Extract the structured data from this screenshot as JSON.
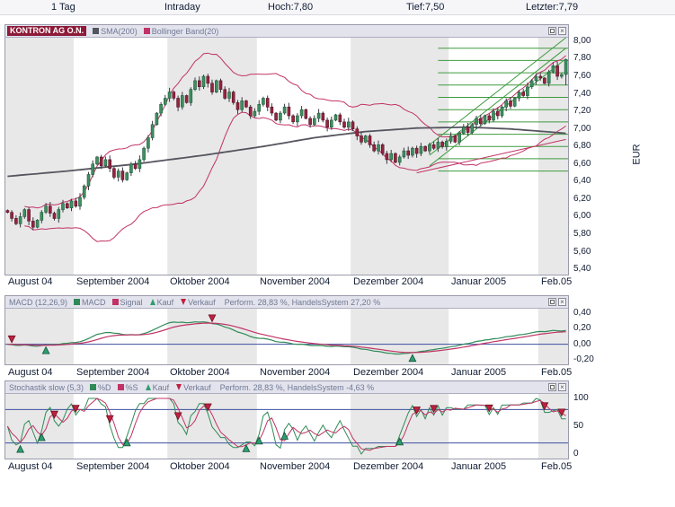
{
  "top_bar": {
    "period": "1 Tag",
    "mode": "Intraday",
    "high": "Hoch:7,80",
    "low": "Tief:7,50",
    "last": "Letzter:7,79"
  },
  "panels": {
    "price": {
      "symbol": "KONTRON AG O.N.",
      "sma": "SMA(200)",
      "bollinger": "Bollinger Band(20)",
      "unit": "EUR"
    },
    "macd": {
      "title": "MACD (12,26,9)",
      "line1_label": "MACD",
      "line2_label": "Signal",
      "buy_label": "Kauf",
      "sell_label": "Verkauf",
      "performance": "Perform. 28,83 %, HandelsSystem 27,20 %"
    },
    "stochastic": {
      "title": "Stochastik slow (5,3)",
      "line1_label": "%D",
      "line2_label": "%S",
      "buy_label": "Kauf",
      "sell_label": "Verkauf",
      "performance": "Perform. 28,83 %, HandelsSystem -4,63 %"
    }
  },
  "colors": {
    "chip_bg": "#8c1a38",
    "up": "#3f8f5f",
    "up_stroke": "#1d5c3c",
    "down": "#962441",
    "down_stroke": "#551226",
    "wick": "#3a3a44",
    "bollinger": "#c13366",
    "sma": "#55555f",
    "macd_line": "#2e8b57",
    "signal_line": "#c13366",
    "buy": "#2e9e6e",
    "buy_stroke": "#14513a",
    "sell": "#c02040",
    "sell_stroke": "#6e1020",
    "annotation_green": "#3f9b3f",
    "threshold_blue": "#3c4fa0",
    "stripe": "#e8e8e8"
  },
  "chart_data": [
    {
      "id": "price",
      "type": "candlestick",
      "title": "KONTRON AG O.N.",
      "x_labels": [
        "August 04",
        "September 2004",
        "Oktober 2004",
        "November 2004",
        "Dezember 2004",
        "Januar 2005",
        "Feb.05"
      ],
      "days_per_month": [
        16,
        22,
        21,
        22,
        23,
        21,
        7
      ],
      "y_ticks": [
        "8,00",
        "7,80",
        "7,60",
        "7,40",
        "7,20",
        "7,00",
        "6,80",
        "6,60",
        "6,40",
        "6,20",
        "6,00",
        "5,80",
        "5,60",
        "5,40"
      ],
      "y_range": [
        5.34,
        8.04
      ],
      "unit": "EUR",
      "closes": [
        6.05,
        5.98,
        5.92,
        6.0,
        6.08,
        5.95,
        5.88,
        5.96,
        6.05,
        6.12,
        6.04,
        5.98,
        6.08,
        6.15,
        6.1,
        6.18,
        6.12,
        6.22,
        6.35,
        6.48,
        6.6,
        6.68,
        6.58,
        6.65,
        6.55,
        6.45,
        6.52,
        6.42,
        6.5,
        6.6,
        6.55,
        6.65,
        6.78,
        6.9,
        7.05,
        7.18,
        7.28,
        7.35,
        7.42,
        7.35,
        7.25,
        7.38,
        7.3,
        7.45,
        7.55,
        7.48,
        7.6,
        7.52,
        7.42,
        7.55,
        7.45,
        7.35,
        7.42,
        7.3,
        7.22,
        7.32,
        7.25,
        7.15,
        7.2,
        7.28,
        7.35,
        7.25,
        7.18,
        7.1,
        7.18,
        7.25,
        7.15,
        7.08,
        7.15,
        7.22,
        7.12,
        7.05,
        7.12,
        7.18,
        7.1,
        7.02,
        7.1,
        7.16,
        7.08,
        7.02,
        7.08,
        7.0,
        6.92,
        6.85,
        6.92,
        6.82,
        6.75,
        6.82,
        6.72,
        6.65,
        6.72,
        6.62,
        6.68,
        6.75,
        6.7,
        6.78,
        6.72,
        6.8,
        6.75,
        6.82,
        6.78,
        6.85,
        6.8,
        6.86,
        6.92,
        6.85,
        6.95,
        7.02,
        6.96,
        7.05,
        7.12,
        7.06,
        7.15,
        7.1,
        7.2,
        7.15,
        7.25,
        7.32,
        7.26,
        7.35,
        7.42,
        7.38,
        7.48,
        7.55,
        7.6,
        7.58,
        7.52,
        7.65,
        7.72,
        7.6,
        7.62,
        7.79
      ],
      "last_candle": {
        "open": 7.62,
        "high": 7.8,
        "low": 7.5,
        "close": 7.79
      },
      "overlays": {
        "sma200_points": [
          [
            0,
            6.46
          ],
          [
            14,
            6.52
          ],
          [
            30,
            6.6
          ],
          [
            46,
            6.7
          ],
          [
            60,
            6.8
          ],
          [
            72,
            6.9
          ],
          [
            84,
            6.97
          ],
          [
            96,
            7.01
          ],
          [
            108,
            7.02
          ],
          [
            118,
            7.0
          ],
          [
            126,
            6.97
          ],
          [
            131,
            6.95
          ]
        ],
        "bollinger_period": 20,
        "resistance_levels": {
          "start_index": 101,
          "values": [
            7.92,
            7.78,
            7.64,
            7.5,
            7.36,
            7.22,
            7.08,
            6.94,
            6.8,
            6.66,
            6.52
          ]
        },
        "trend_channel": {
          "start_index": 99,
          "end_index": 131,
          "lines": [
            [
              6.58,
              7.8
            ],
            [
              6.7,
              7.92
            ],
            [
              6.82,
              8.04
            ]
          ]
        },
        "support_trendline": {
          "start_index": 96,
          "end_index": 131,
          "values": [
            6.5,
            6.88
          ]
        }
      }
    },
    {
      "id": "macd",
      "type": "line",
      "series": [
        "MACD",
        "Signal"
      ],
      "params": [
        12,
        26,
        9
      ],
      "y_ticks": [
        "0,40",
        "0,20",
        "0,00",
        "-0,20"
      ],
      "y_range": [
        -0.26,
        0.46
      ],
      "zero_line": 0.0
    },
    {
      "id": "stochastic",
      "type": "line",
      "series": [
        "%D",
        "%S"
      ],
      "params": [
        5,
        3
      ],
      "y_ticks": [
        "100",
        "50",
        "0"
      ],
      "y_range": [
        -8,
        108
      ],
      "thresholds": [
        80,
        20
      ]
    }
  ]
}
